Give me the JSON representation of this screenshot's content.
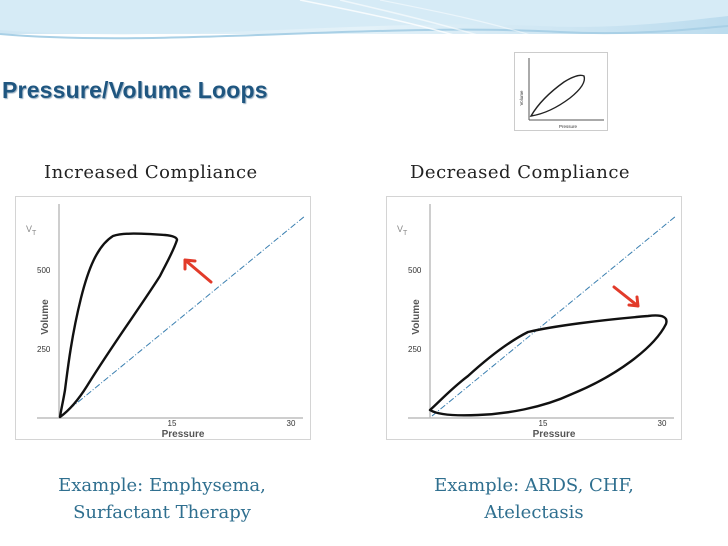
{
  "slide": {
    "title": "Pressure/Volume Loops",
    "accent": "#1f5680",
    "example_color": "#2f6f8f"
  },
  "thumbnail": {
    "y_label": "Volume",
    "x_label": "Pressure"
  },
  "left_panel": {
    "heading": "Increased  Compliance",
    "example_line1": "Example: Emphysema,",
    "example_line2": "Surfactant Therapy",
    "y_symbol": "V",
    "y_symbol_sub": "T",
    "y_label": "Volume",
    "x_label": "Pressure",
    "y_ticks": [
      "500",
      "250"
    ],
    "x_ticks": [
      "15",
      "30"
    ]
  },
  "right_panel": {
    "heading": "Decreased  Compliance",
    "example_line1": "Example: ARDS, CHF,",
    "example_line2": "Atelectasis",
    "y_symbol": "V",
    "y_symbol_sub": "T",
    "y_label": "Volume",
    "x_label": "Pressure",
    "y_ticks": [
      "500",
      "250"
    ],
    "x_ticks": [
      "15",
      "30"
    ]
  }
}
